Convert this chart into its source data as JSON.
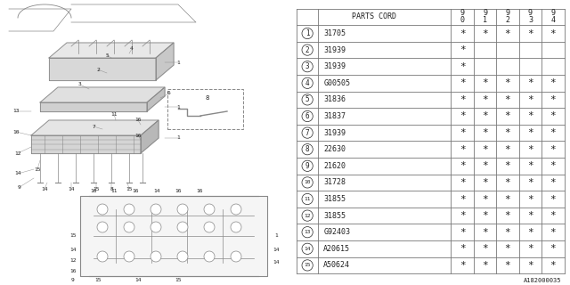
{
  "diagram_label": "A182000035",
  "bg_color": "#ffffff",
  "header_parts_cord": "PARTS CORD",
  "year_headers": [
    "9\n0",
    "9\n1",
    "9\n2",
    "9\n3",
    "9\n4"
  ],
  "rows": [
    {
      "num": "1",
      "part": "31705",
      "marks": [
        true,
        true,
        true,
        true,
        true
      ]
    },
    {
      "num": "2",
      "part": "31939",
      "marks": [
        true,
        false,
        false,
        false,
        false
      ]
    },
    {
      "num": "3",
      "part": "31939",
      "marks": [
        true,
        false,
        false,
        false,
        false
      ]
    },
    {
      "num": "4",
      "part": "G00505",
      "marks": [
        true,
        true,
        true,
        true,
        true
      ]
    },
    {
      "num": "5",
      "part": "31836",
      "marks": [
        true,
        true,
        true,
        true,
        true
      ]
    },
    {
      "num": "6",
      "part": "31837",
      "marks": [
        true,
        true,
        true,
        true,
        true
      ]
    },
    {
      "num": "7",
      "part": "31939",
      "marks": [
        true,
        true,
        true,
        true,
        true
      ]
    },
    {
      "num": "8",
      "part": "22630",
      "marks": [
        true,
        true,
        true,
        true,
        true
      ]
    },
    {
      "num": "9",
      "part": "21620",
      "marks": [
        true,
        true,
        true,
        true,
        true
      ]
    },
    {
      "num": "10",
      "part": "31728",
      "marks": [
        true,
        true,
        true,
        true,
        true
      ]
    },
    {
      "num": "11",
      "part": "31855",
      "marks": [
        true,
        true,
        true,
        true,
        true
      ]
    },
    {
      "num": "12",
      "part": "31855",
      "marks": [
        true,
        true,
        true,
        true,
        true
      ]
    },
    {
      "num": "13",
      "part": "G92403",
      "marks": [
        true,
        true,
        true,
        true,
        true
      ]
    },
    {
      "num": "14",
      "part": "A20615",
      "marks": [
        true,
        true,
        true,
        true,
        true
      ]
    },
    {
      "num": "15",
      "part": "A50624",
      "marks": [
        true,
        true,
        true,
        true,
        true
      ]
    }
  ],
  "line_color": "#777777",
  "text_color": "#222222",
  "table_font_size": 6.0,
  "header_font_size": 6.0
}
